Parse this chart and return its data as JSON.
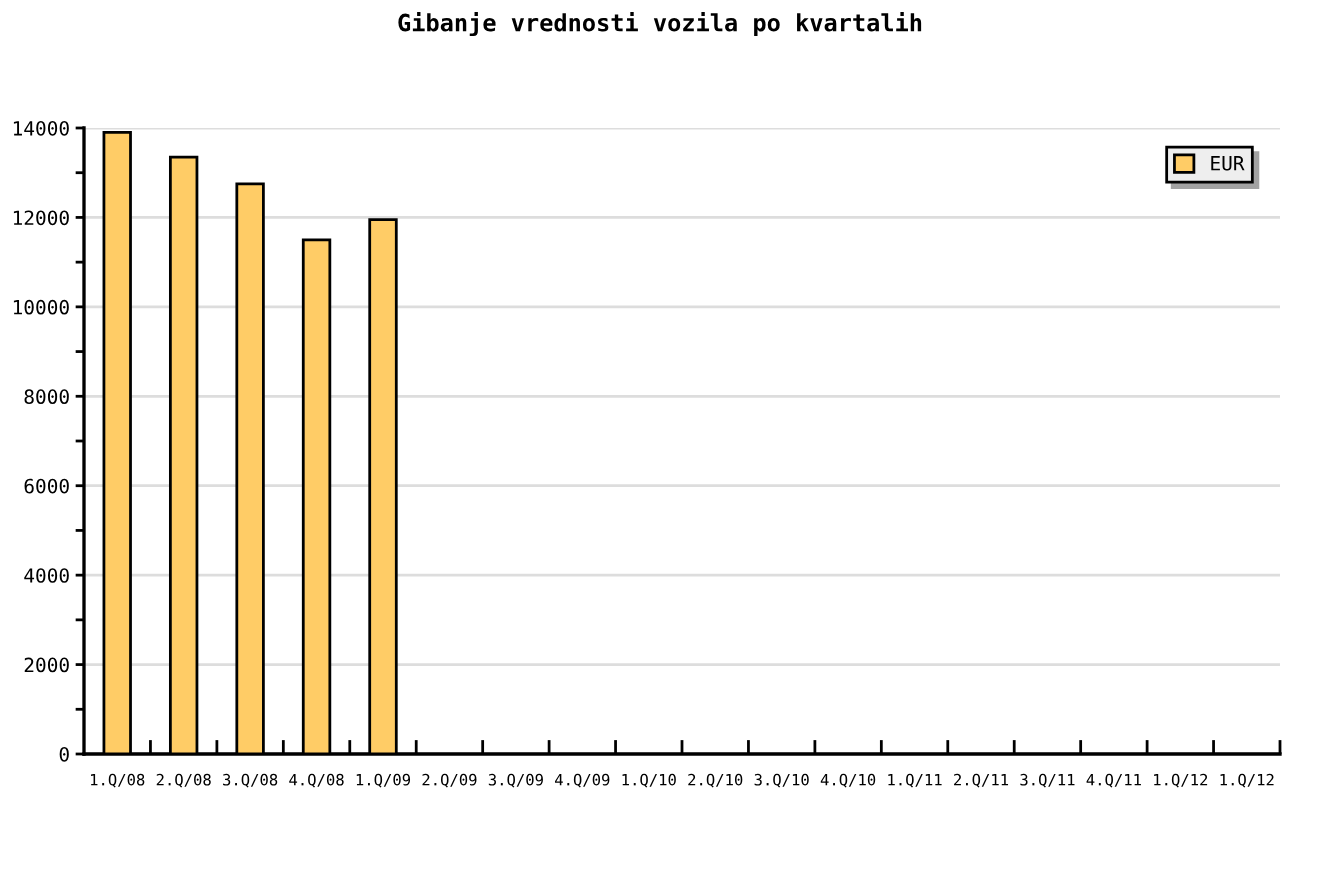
{
  "chart_data": {
    "type": "bar",
    "title": "Gibanje vrednosti vozila po kvartalih",
    "categories": [
      "1.Q/08",
      "2.Q/08",
      "3.Q/08",
      "4.Q/08",
      "1.Q/09",
      "2.Q/09",
      "3.Q/09",
      "4.Q/09",
      "1.Q/10",
      "2.Q/10",
      "3.Q/10",
      "4.Q/10",
      "1.Q/11",
      "2.Q/11",
      "3.Q/11",
      "4.Q/11",
      "1.Q/12",
      "1.Q/12"
    ],
    "series": [
      {
        "name": "EUR",
        "color": "#ffcc66",
        "values": [
          13900,
          13350,
          12750,
          11500,
          11950,
          null,
          null,
          null,
          null,
          null,
          null,
          null,
          null,
          null,
          null,
          null,
          null,
          null
        ]
      }
    ],
    "ylim": [
      0,
      14000
    ],
    "yticks": [
      0,
      {
        "value": 1000,
        "label": null
      },
      2000,
      {
        "value": 3000,
        "label": null
      },
      4000,
      {
        "value": 5000,
        "label": null
      },
      6000,
      {
        "value": 7000,
        "label": null
      },
      8000,
      {
        "value": 9000,
        "label": null
      },
      10000,
      {
        "value": 11000,
        "label": null
      },
      12000,
      {
        "value": 13000,
        "label": null
      },
      14000
    ],
    "grid": "y",
    "legend": "top right"
  }
}
